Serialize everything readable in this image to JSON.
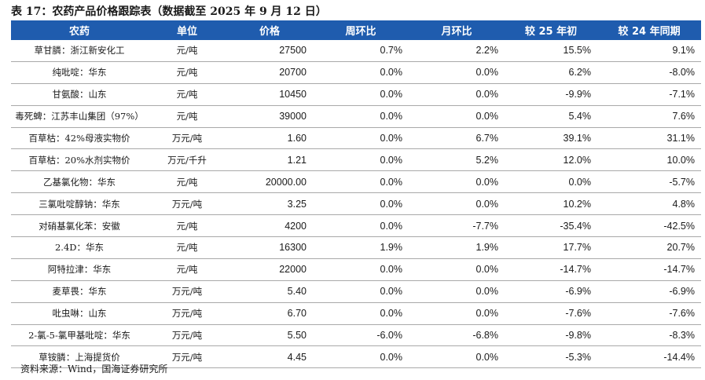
{
  "title": "表 17：农药产品价格跟踪表（数据截至 2025 年 9 月 12 日）",
  "headers": [
    "农药",
    "单位",
    "价格",
    "周环比",
    "月环比",
    "较 25 年初",
    "较 24 年同期"
  ],
  "rows": [
    [
      "草甘膦：浙江新安化工",
      "元/吨",
      "27500",
      "0.7%",
      "2.2%",
      "15.5%",
      "9.1%"
    ],
    [
      "纯吡啶：华东",
      "元/吨",
      "20700",
      "0.0%",
      "0.0%",
      "6.2%",
      "-8.0%"
    ],
    [
      "甘氨酸：山东",
      "元/吨",
      "10450",
      "0.0%",
      "0.0%",
      "-9.9%",
      "-7.1%"
    ],
    [
      "毒死蜱：江苏丰山集团（97%）",
      "元/吨",
      "39000",
      "0.0%",
      "0.0%",
      "5.4%",
      "7.6%"
    ],
    [
      "百草枯：42%母液实物价",
      "万元/吨",
      "1.60",
      "0.0%",
      "6.7%",
      "39.1%",
      "31.1%"
    ],
    [
      "百草枯：20%水剂实物价",
      "万元/千升",
      "1.21",
      "0.0%",
      "5.2%",
      "12.0%",
      "10.0%"
    ],
    [
      "乙基氯化物：华东",
      "元/吨",
      "20000.00",
      "0.0%",
      "0.0%",
      "0.0%",
      "-5.7%"
    ],
    [
      "三氯吡啶醇钠：华东",
      "万元/吨",
      "3.25",
      "0.0%",
      "0.0%",
      "10.2%",
      "4.8%"
    ],
    [
      "对硝基氯化苯：安徽",
      "元/吨",
      "4200",
      "0.0%",
      "-7.7%",
      "-35.4%",
      "-42.5%"
    ],
    [
      "2.4D：华东",
      "元/吨",
      "16300",
      "1.9%",
      "1.9%",
      "17.7%",
      "20.7%"
    ],
    [
      "阿特拉津：华东",
      "元/吨",
      "22000",
      "0.0%",
      "0.0%",
      "-14.7%",
      "-14.7%"
    ],
    [
      "麦草畏：华东",
      "万元/吨",
      "5.40",
      "0.0%",
      "0.0%",
      "-6.9%",
      "-6.9%"
    ],
    [
      "吡虫啉：山东",
      "万元/吨",
      "6.70",
      "0.0%",
      "0.0%",
      "-7.6%",
      "-7.6%"
    ],
    [
      "2-氯-5-氯甲基吡啶：华东",
      "万元/吨",
      "5.50",
      "-6.0%",
      "-6.8%",
      "-9.8%",
      "-8.3%"
    ],
    [
      "草铵膦：上海提货价",
      "万元/吨",
      "4.45",
      "0.0%",
      "0.0%",
      "-5.3%",
      "-14.4%"
    ]
  ],
  "source": "资料来源：Wind，国海证券研究所"
}
